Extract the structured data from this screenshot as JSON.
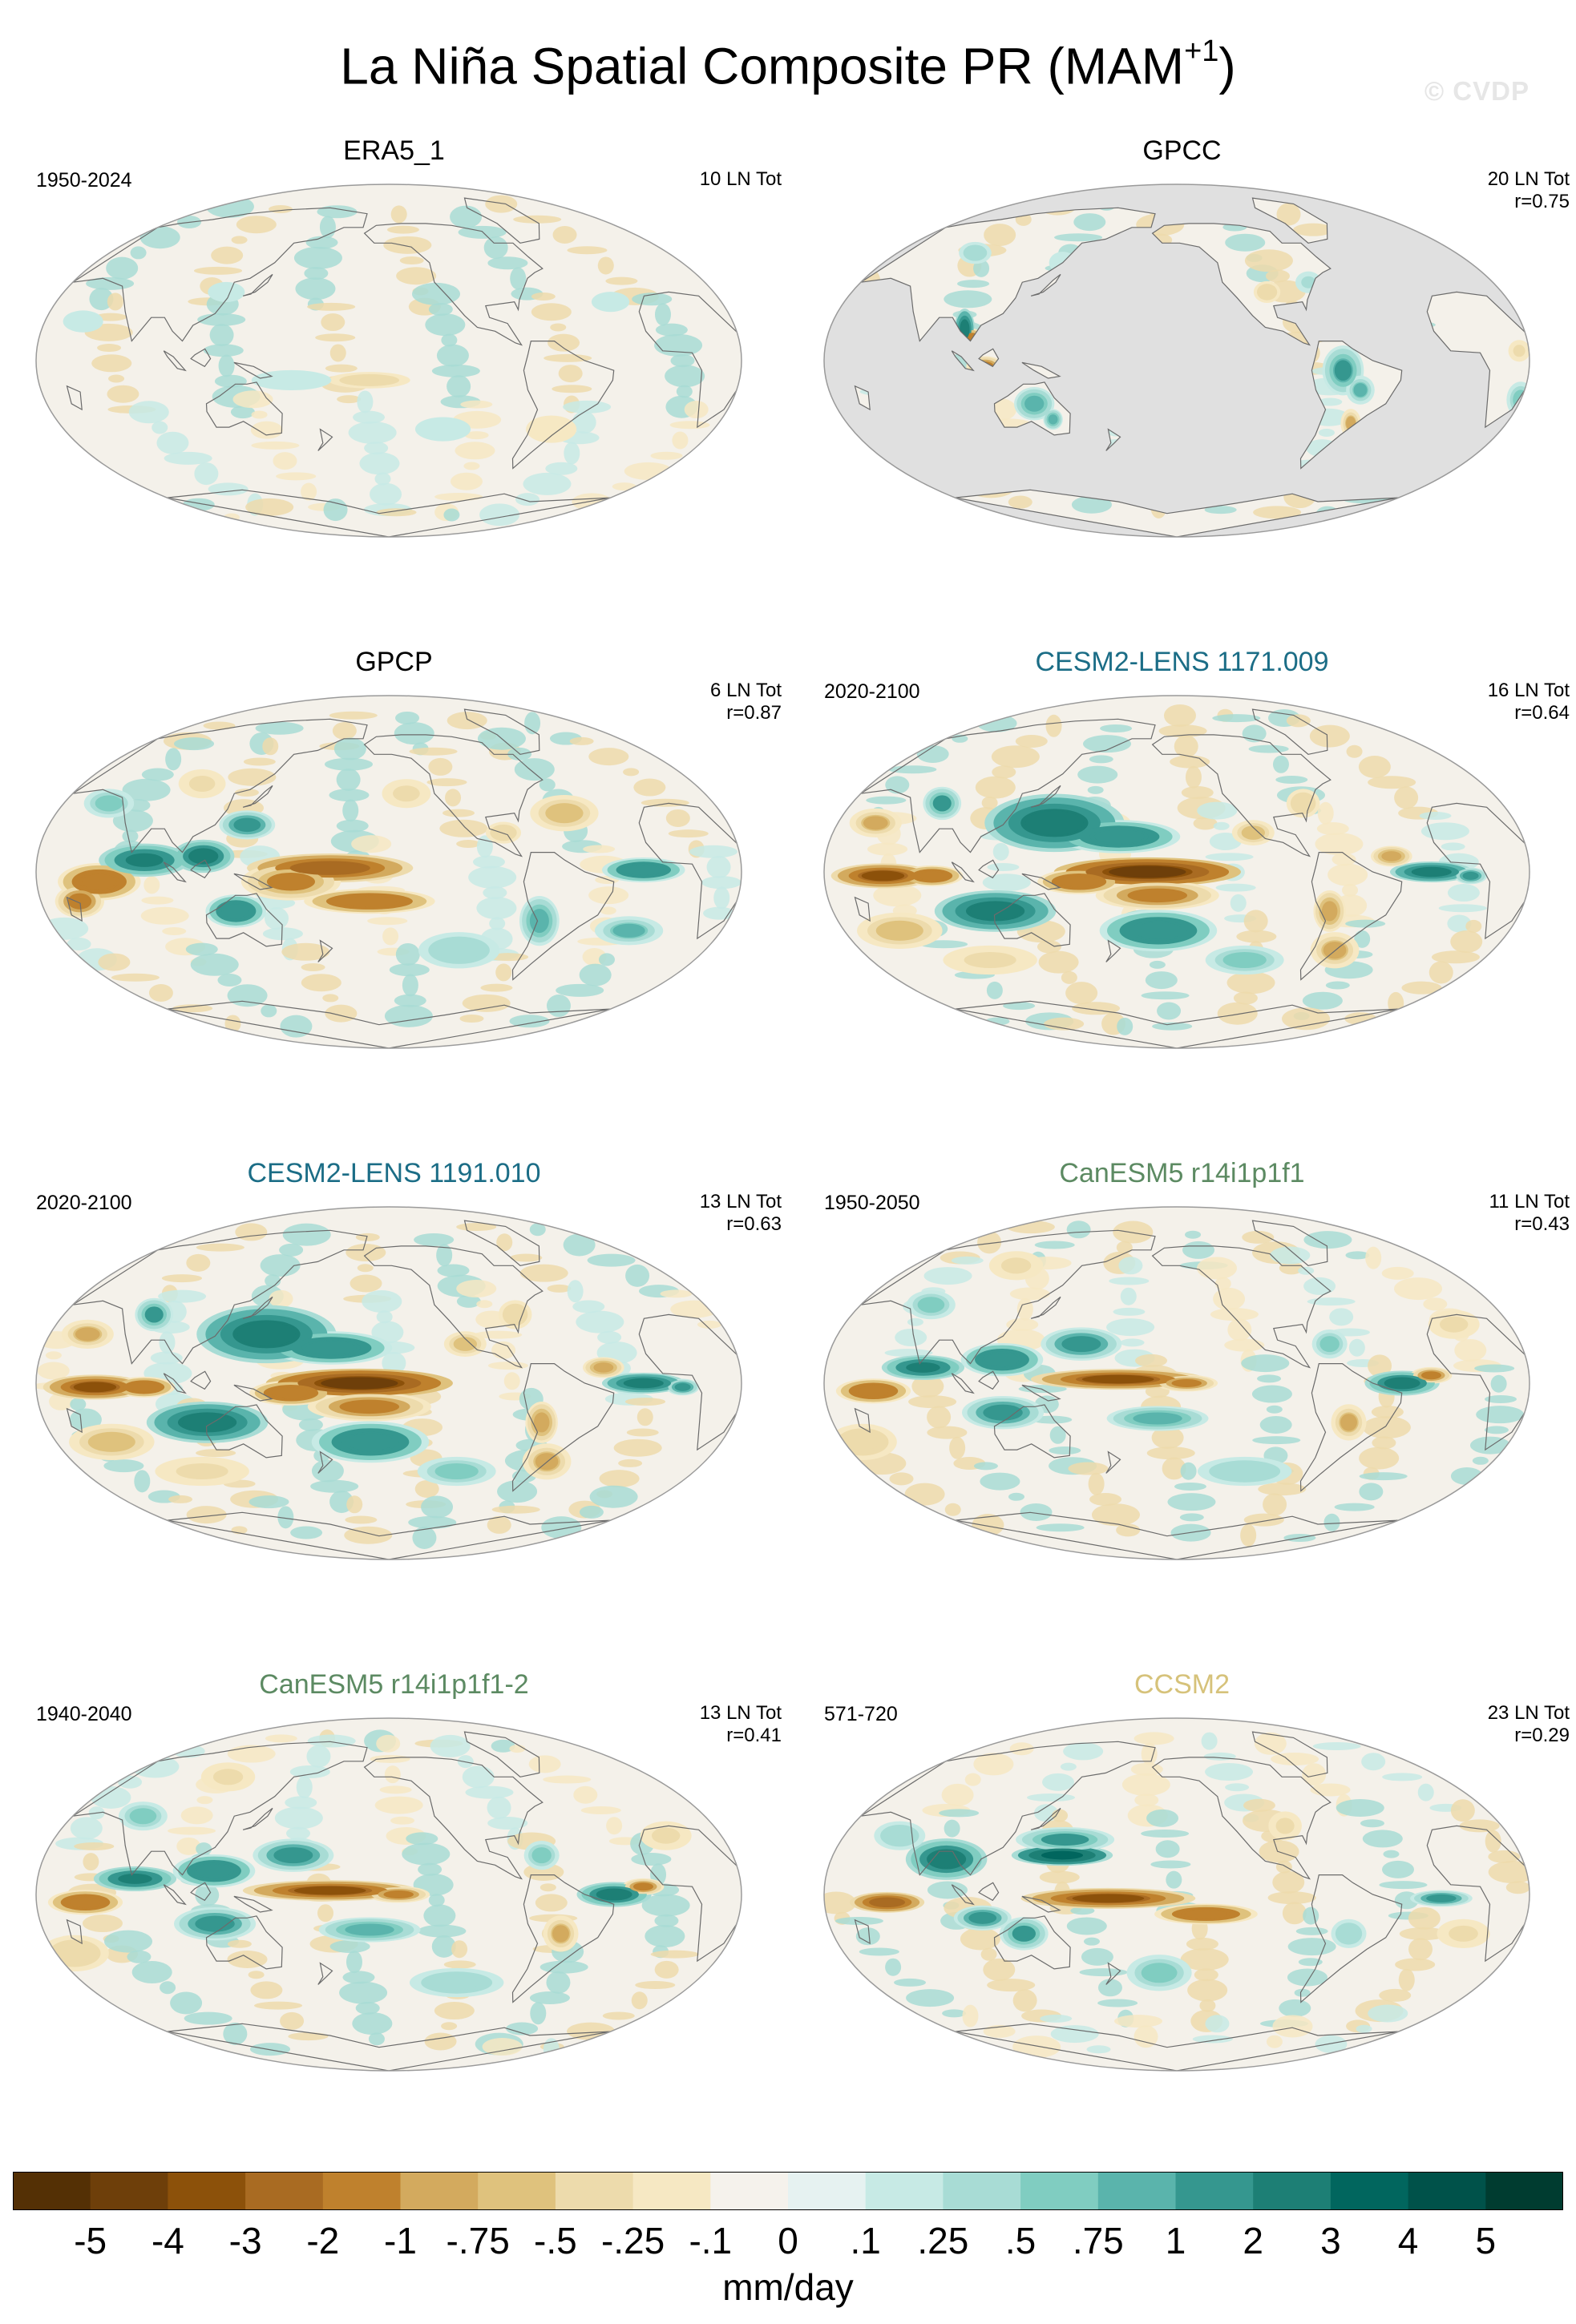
{
  "figure": {
    "title": "La Niña Spatial Composite PR (MAM",
    "title_superscript": "+1",
    "title_close": ")",
    "watermark": "© CVDP"
  },
  "colors": {
    "ocean_masked": "#e0e0e0",
    "neutral": "#f4f1ea",
    "coast": "#6b6b6b",
    "title_cesm2": "#1b6d86",
    "title_canesm5": "#5c8a62",
    "title_ccsm2": "#d6c27a"
  },
  "panels": [
    {
      "title": "ERA5_1",
      "title_color": "#000000",
      "period": "1950-2024",
      "stats": [
        "10 LN Tot"
      ],
      "pattern": "weak",
      "land_only": false
    },
    {
      "title": "GPCC",
      "title_color": "#000000",
      "period": "",
      "stats": [
        "20 LN Tot",
        "r=0.75"
      ],
      "pattern": "land",
      "land_only": true
    },
    {
      "title": "GPCP",
      "title_color": "#000000",
      "period": "",
      "stats": [
        "6 LN Tot",
        "r=0.87"
      ],
      "pattern": "gpcp",
      "land_only": false
    },
    {
      "title": "CESM2-LENS 1171.009",
      "title_color": "#1b6d86",
      "period": "2020-2100",
      "stats": [
        "16 LN Tot",
        "r=0.64"
      ],
      "pattern": "strong",
      "land_only": false
    },
    {
      "title": "CESM2-LENS 1191.010",
      "title_color": "#1b6d86",
      "period": "2020-2100",
      "stats": [
        "13 LN Tot",
        "r=0.63"
      ],
      "pattern": "strong",
      "land_only": false
    },
    {
      "title": "CanESM5 r14i1p1f1",
      "title_color": "#5c8a62",
      "period": "1950-2050",
      "stats": [
        "11 LN Tot",
        "r=0.43"
      ],
      "pattern": "canesm",
      "land_only": false
    },
    {
      "title": "CanESM5 r14i1p1f1-2",
      "title_color": "#5c8a62",
      "period": "1940-2040",
      "stats": [
        "13 LN Tot",
        "r=0.41"
      ],
      "pattern": "canesm",
      "land_only": false
    },
    {
      "title": "CCSM2",
      "title_color": "#d6c27a",
      "period": "571-720",
      "stats": [
        "23 LN Tot",
        "r=0.29"
      ],
      "pattern": "ccsm",
      "land_only": false
    }
  ],
  "colorbar": {
    "colors": [
      "#543005",
      "#6e3f0a",
      "#8c510a",
      "#a96b22",
      "#bf812d",
      "#d3aa5e",
      "#dfc27d",
      "#eddbac",
      "#f6e8c3",
      "#f5f2ec",
      "#e6f2f1",
      "#c7eae5",
      "#a8dcd5",
      "#80cdc1",
      "#5ab4ac",
      "#35978f",
      "#1d7f75",
      "#01665e",
      "#00524a",
      "#003c30"
    ],
    "labels": [
      "-5",
      "-4",
      "-3",
      "-2",
      "-1",
      "-.75",
      "-.5",
      "-.25",
      "-.1",
      "0",
      ".1",
      ".25",
      ".5",
      ".75",
      "1",
      "2",
      "3",
      "4",
      "5"
    ],
    "unit": "mm/day"
  }
}
